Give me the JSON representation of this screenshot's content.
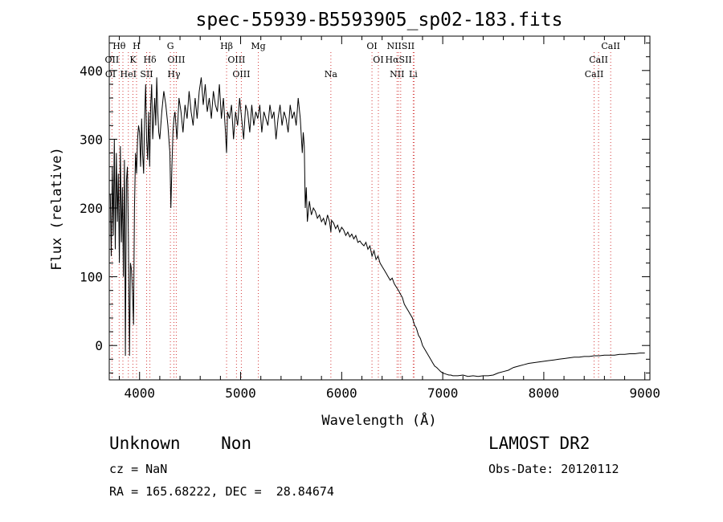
{
  "chart_data": {
    "type": "line",
    "title": "spec-55939-B5593905_sp02-183.fits",
    "xlabel": "Wavelength (Å)",
    "ylabel": "Flux (relative)",
    "xlim": [
      3700,
      9050
    ],
    "ylim": [
      -50,
      450
    ],
    "xticks": [
      4000,
      5000,
      6000,
      7000,
      8000,
      9000
    ],
    "yticks": [
      0,
      100,
      200,
      300,
      400
    ],
    "grid": false,
    "line_color": "#000000",
    "series": [
      {
        "x": [
          3710,
          3720,
          3730,
          3740,
          3750,
          3760,
          3770,
          3780,
          3790,
          3800,
          3810,
          3820,
          3830,
          3840,
          3850,
          3860,
          3870,
          3880,
          3890,
          3900,
          3910,
          3920,
          3930,
          3940,
          3950,
          3960,
          3970,
          3980,
          3990,
          4000,
          4010,
          4020,
          4030,
          4040,
          4050,
          4060,
          4070,
          4080,
          4090,
          4100,
          4110,
          4120,
          4130,
          4140,
          4150,
          4160,
          4170,
          4180,
          4190,
          4200,
          4220,
          4240,
          4260,
          4280,
          4300,
          4310,
          4320,
          4330,
          4340,
          4350,
          4370,
          4390,
          4410,
          4430,
          4450,
          4470,
          4490,
          4510,
          4530,
          4550,
          4570,
          4590,
          4610,
          4630,
          4650,
          4670,
          4690,
          4710,
          4730,
          4750,
          4770,
          4790,
          4810,
          4830,
          4850,
          4861,
          4870,
          4890,
          4910,
          4930,
          4950,
          4970,
          4990,
          5010,
          5030,
          5050,
          5070,
          5090,
          5110,
          5130,
          5150,
          5170,
          5190,
          5210,
          5230,
          5250,
          5270,
          5290,
          5310,
          5330,
          5350,
          5370,
          5390,
          5410,
          5430,
          5450,
          5470,
          5490,
          5510,
          5530,
          5550,
          5570,
          5590,
          5610,
          5620,
          5630,
          5640,
          5650,
          5660,
          5680,
          5700,
          5720,
          5740,
          5760,
          5780,
          5800,
          5820,
          5840,
          5860,
          5880,
          5893,
          5900,
          5920,
          5940,
          5960,
          5980,
          6000,
          6020,
          6040,
          6060,
          6080,
          6100,
          6120,
          6140,
          6160,
          6180,
          6200,
          6220,
          6240,
          6260,
          6280,
          6300,
          6320,
          6340,
          6360,
          6380,
          6400,
          6420,
          6440,
          6460,
          6480,
          6500,
          6520,
          6540,
          6563,
          6580,
          6600,
          6620,
          6640,
          6660,
          6680,
          6700,
          6720,
          6740,
          6760,
          6780,
          6800,
          6820,
          6840,
          6860,
          6880,
          6900,
          6920,
          6940,
          6960,
          6980,
          7000,
          7020,
          7040,
          7060,
          7080,
          7100,
          7150,
          7200,
          7250,
          7300,
          7350,
          7400,
          7450,
          7500,
          7550,
          7600,
          7650,
          7700,
          7750,
          7800,
          7850,
          7900,
          7950,
          8000,
          8050,
          8100,
          8150,
          8200,
          8250,
          8300,
          8350,
          8400,
          8450,
          8500,
          8550,
          8600,
          8650,
          8700,
          8750,
          8800,
          8850,
          8900,
          8950,
          9000
        ],
        "y": [
          220,
          130,
          260,
          160,
          300,
          140,
          280,
          180,
          250,
          120,
          290,
          150,
          230,
          100,
          270,
          -15,
          240,
          260,
          150,
          -15,
          120,
          110,
          80,
          30,
          200,
          280,
          250,
          300,
          320,
          310,
          260,
          330,
          280,
          250,
          330,
          380,
          300,
          270,
          340,
          260,
          350,
          380,
          300,
          330,
          360,
          320,
          390,
          340,
          310,
          300,
          340,
          370,
          350,
          320,
          280,
          200,
          260,
          310,
          330,
          340,
          300,
          360,
          340,
          310,
          350,
          330,
          370,
          340,
          320,
          360,
          330,
          370,
          390,
          350,
          380,
          340,
          360,
          330,
          370,
          350,
          340,
          380,
          330,
          360,
          310,
          280,
          340,
          330,
          350,
          300,
          340,
          320,
          360,
          330,
          300,
          350,
          340,
          310,
          350,
          320,
          340,
          330,
          350,
          310,
          340,
          330,
          320,
          350,
          330,
          340,
          300,
          330,
          350,
          320,
          340,
          330,
          310,
          350,
          330,
          340,
          320,
          360,
          330,
          280,
          310,
          290,
          200,
          230,
          180,
          210,
          190,
          200,
          195,
          185,
          190,
          180,
          185,
          175,
          190,
          180,
          165,
          182,
          178,
          170,
          175,
          165,
          172,
          168,
          160,
          165,
          158,
          162,
          155,
          160,
          150,
          152,
          148,
          145,
          150,
          140,
          145,
          130,
          138,
          125,
          130,
          120,
          115,
          110,
          105,
          100,
          95,
          98,
          90,
          85,
          80,
          75,
          70,
          60,
          55,
          50,
          45,
          40,
          30,
          25,
          15,
          10,
          0,
          -5,
          -10,
          -15,
          -20,
          -25,
          -30,
          -32,
          -35,
          -38,
          -40,
          -41,
          -42,
          -43,
          -43,
          -44,
          -44,
          -43,
          -45,
          -44,
          -45,
          -44,
          -44,
          -43,
          -40,
          -38,
          -36,
          -32,
          -30,
          -28,
          -26,
          -25,
          -24,
          -23,
          -22,
          -21,
          -20,
          -19,
          -18,
          -17,
          -17,
          -16,
          -16,
          -15,
          -15,
          -14,
          -14,
          -14,
          -13,
          -13,
          -12,
          -12,
          -11,
          -11
        ]
      }
    ],
    "line_ids": [
      {
        "label": "Hθ",
        "x": 3798,
        "row": 0
      },
      {
        "label": "H",
        "x": 3970,
        "row": 0
      },
      {
        "label": "G",
        "x": 4305,
        "row": 0
      },
      {
        "label": "Hβ",
        "x": 4861,
        "row": 0
      },
      {
        "label": "Mg",
        "x": 5175,
        "row": 0
      },
      {
        "label": "OI",
        "x": 6300,
        "row": 0
      },
      {
        "label": "NIISII",
        "x": 6584,
        "row": 0
      },
      {
        "label": "CaII",
        "x": 8662,
        "row": 0
      },
      {
        "label": "OII",
        "x": 3727,
        "row": 1
      },
      {
        "label": "K",
        "x": 3934,
        "row": 1
      },
      {
        "label": "Hδ",
        "x": 4102,
        "row": 1
      },
      {
        "label": "OIII",
        "x": 4363,
        "row": 1
      },
      {
        "label": "OIII",
        "x": 4959,
        "row": 1
      },
      {
        "label": "OI",
        "x": 6363,
        "row": 1
      },
      {
        "label": "HαSII",
        "x": 6563,
        "row": 1
      },
      {
        "label": "CaII",
        "x": 8542,
        "row": 1
      },
      {
        "label": "OI",
        "x": 3712,
        "row": 2
      },
      {
        "label": "HeI",
        "x": 3889,
        "row": 2
      },
      {
        "label": "SII",
        "x": 4070,
        "row": 2
      },
      {
        "label": "Hγ",
        "x": 4340,
        "row": 2
      },
      {
        "label": "OIII",
        "x": 5007,
        "row": 2
      },
      {
        "label": "Na",
        "x": 5893,
        "row": 2
      },
      {
        "label": "NII",
        "x": 6548,
        "row": 2
      },
      {
        "label": "Li",
        "x": 6708,
        "row": 2
      },
      {
        "label": "CaII",
        "x": 8498,
        "row": 2
      }
    ],
    "line_marks_color": "#d43a3a",
    "line_marks_x": [
      3727,
      3798,
      3835,
      3889,
      3934,
      3970,
      4070,
      4102,
      4305,
      4340,
      4363,
      4861,
      4959,
      5007,
      5175,
      5893,
      6300,
      6363,
      6548,
      6563,
      6584,
      6708,
      6716,
      8498,
      8542,
      8662
    ]
  },
  "footer": {
    "left_line1": "Unknown    Non",
    "left_line2": "cz = NaN",
    "left_line3": "RA = 165.68222, DEC =  28.84674",
    "right_line1": "LAMOST DR2",
    "right_line2": "Obs-Date: 20120112"
  }
}
